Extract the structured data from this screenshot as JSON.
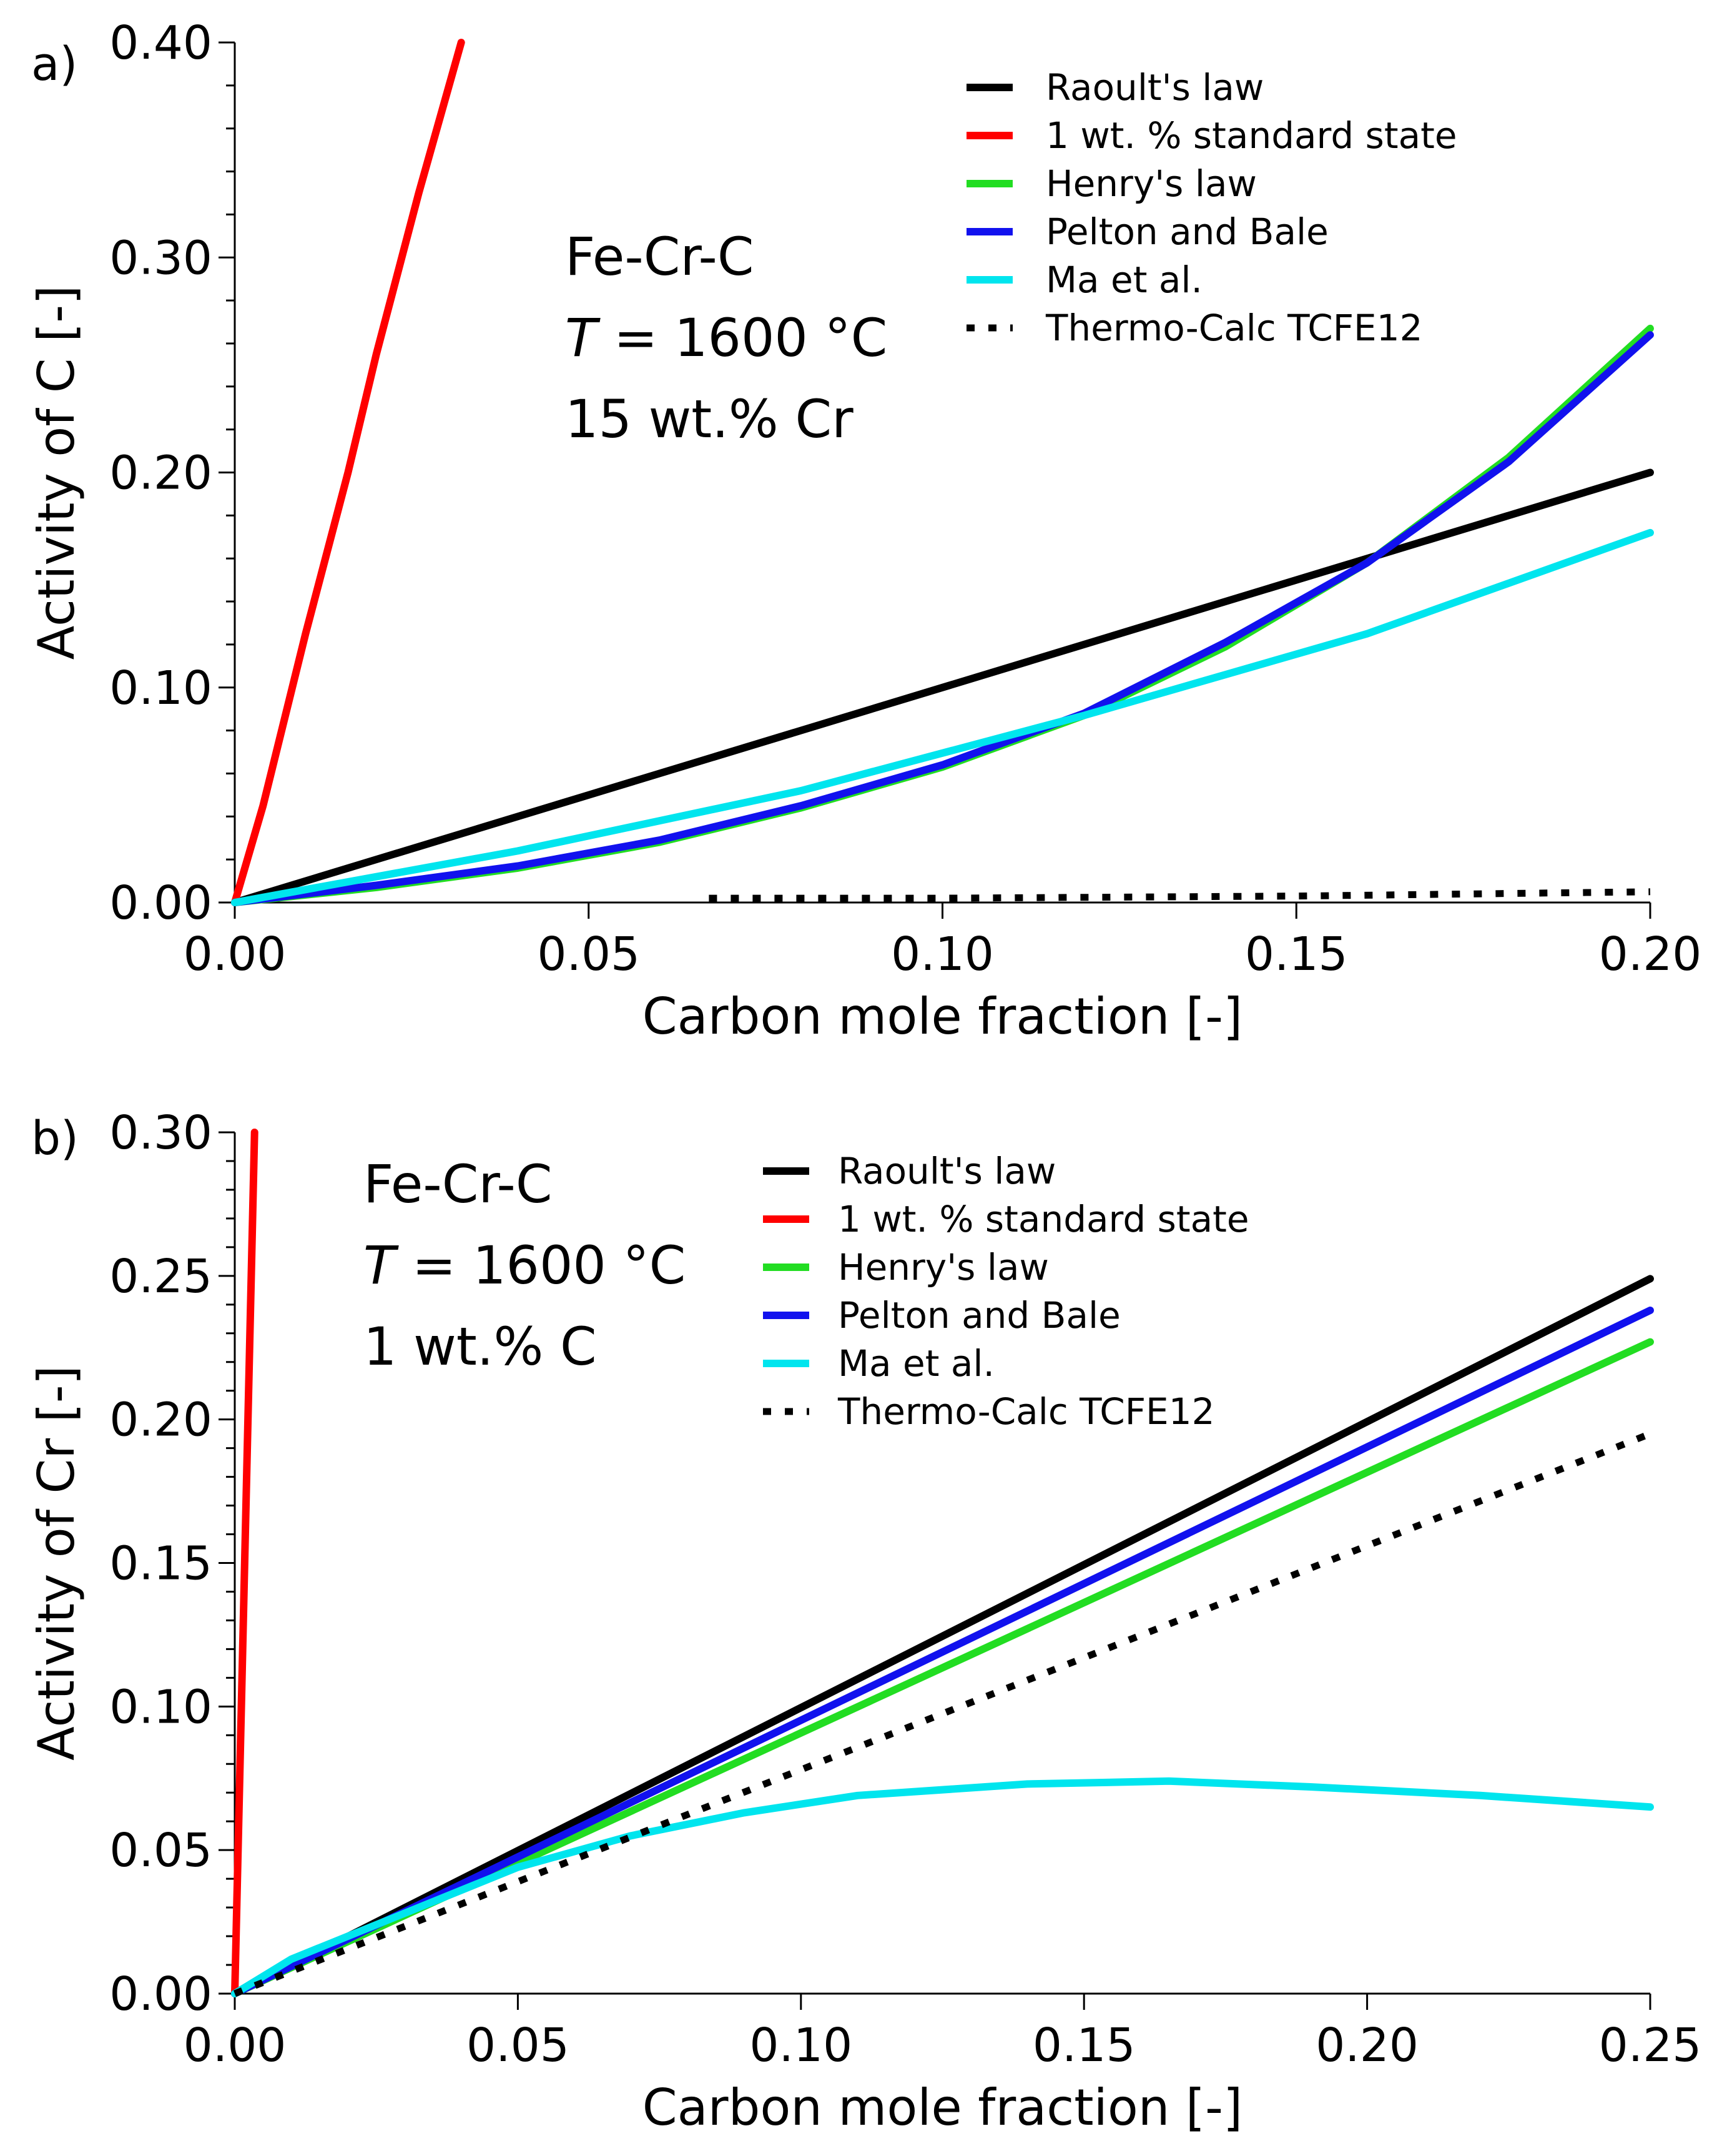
{
  "chart_data": [
    {
      "type": "line",
      "panel_label": "a)",
      "xlabel": "Carbon mole fraction [-]",
      "ylabel": "Activity of C [-]",
      "xlim": [
        0,
        0.2
      ],
      "ylim": [
        0,
        0.4
      ],
      "xticks": [
        "0.00",
        "0.05",
        "0.10",
        "0.15",
        "0.20"
      ],
      "yticks": [
        "0.00",
        "0.10",
        "0.20",
        "0.30",
        "0.40"
      ],
      "annotation": {
        "line1": "Fe-Cr-C",
        "line2_italic": "T",
        "line2_rest": " = 1600 °C",
        "line3": "15 wt.% Cr"
      },
      "legend_position": "top-right",
      "series": [
        {
          "name": "Raoult's law",
          "color": "#000000",
          "style": "solid",
          "x": [
            0,
            0.2
          ],
          "y": [
            0,
            0.2
          ]
        },
        {
          "name": "1 wt. % standard state",
          "color": "#ff0000",
          "style": "solid",
          "x": [
            0,
            0.004,
            0.01,
            0.016,
            0.02,
            0.026,
            0.032
          ],
          "y": [
            0,
            0.045,
            0.125,
            0.2,
            0.255,
            0.33,
            0.4
          ]
        },
        {
          "name": "Henry's law",
          "color": "#22dd22",
          "style": "solid",
          "x": [
            0,
            0.02,
            0.04,
            0.06,
            0.08,
            0.1,
            0.12,
            0.14,
            0.16,
            0.18,
            0.2
          ],
          "y": [
            0,
            0.007,
            0.016,
            0.028,
            0.044,
            0.063,
            0.087,
            0.119,
            0.158,
            0.207,
            0.267
          ]
        },
        {
          "name": "Pelton and Bale",
          "color": "#1111ee",
          "style": "solid",
          "x": [
            0,
            0.02,
            0.04,
            0.06,
            0.08,
            0.1,
            0.12,
            0.14,
            0.16,
            0.18,
            0.2
          ],
          "y": [
            0,
            0.008,
            0.017,
            0.029,
            0.045,
            0.064,
            0.088,
            0.121,
            0.158,
            0.205,
            0.264
          ]
        },
        {
          "name": "Ma et al.",
          "color": "#00e5ee",
          "style": "solid",
          "x": [
            0,
            0.04,
            0.08,
            0.12,
            0.16,
            0.2
          ],
          "y": [
            0,
            0.024,
            0.052,
            0.087,
            0.125,
            0.172
          ]
        },
        {
          "name": "Thermo-Calc TCFE12",
          "color": "#000000",
          "style": "dotted",
          "x": [
            0.067,
            0.1,
            0.15,
            0.2
          ],
          "y": [
            0.002,
            0.002,
            0.003,
            0.005
          ]
        }
      ]
    },
    {
      "type": "line",
      "panel_label": "b)",
      "xlabel": "Carbon mole fraction [-]",
      "ylabel": "Activity of Cr [-]",
      "xlim": [
        0,
        0.25
      ],
      "ylim": [
        0,
        0.3
      ],
      "xticks": [
        "0.00",
        "0.05",
        "0.10",
        "0.15",
        "0.20",
        "0.25"
      ],
      "yticks": [
        "0.00",
        "0.05",
        "0.10",
        "0.15",
        "0.20",
        "0.25",
        "0.30"
      ],
      "annotation": {
        "line1": "Fe-Cr-C",
        "line2_italic": "T",
        "line2_rest": " = 1600 °C",
        "line3": "1 wt.% C"
      },
      "legend_position": "top-center",
      "series": [
        {
          "name": "Raoult's law",
          "color": "#000000",
          "style": "solid",
          "x": [
            0,
            0.25
          ],
          "y": [
            0,
            0.249
          ]
        },
        {
          "name": "1 wt. % standard state",
          "color": "#ff0000",
          "style": "solid",
          "x": [
            0,
            0.0035
          ],
          "y": [
            0,
            0.3
          ]
        },
        {
          "name": "Henry's law",
          "color": "#22dd22",
          "style": "solid",
          "x": [
            0,
            0.25
          ],
          "y": [
            0,
            0.227
          ]
        },
        {
          "name": "Pelton and Bale",
          "color": "#1111ee",
          "style": "solid",
          "x": [
            0,
            0.25
          ],
          "y": [
            0,
            0.238
          ]
        },
        {
          "name": "Ma et al.",
          "color": "#00e5ee",
          "style": "solid",
          "x": [
            0,
            0.01,
            0.03,
            0.05,
            0.07,
            0.09,
            0.11,
            0.14,
            0.165,
            0.19,
            0.22,
            0.25
          ],
          "y": [
            0,
            0.012,
            0.028,
            0.044,
            0.055,
            0.063,
            0.069,
            0.073,
            0.074,
            0.072,
            0.069,
            0.065
          ]
        },
        {
          "name": "Thermo-Calc TCFE12",
          "color": "#000000",
          "style": "dotted",
          "x": [
            0,
            0.25
          ],
          "y": [
            0,
            0.195
          ]
        }
      ]
    }
  ]
}
